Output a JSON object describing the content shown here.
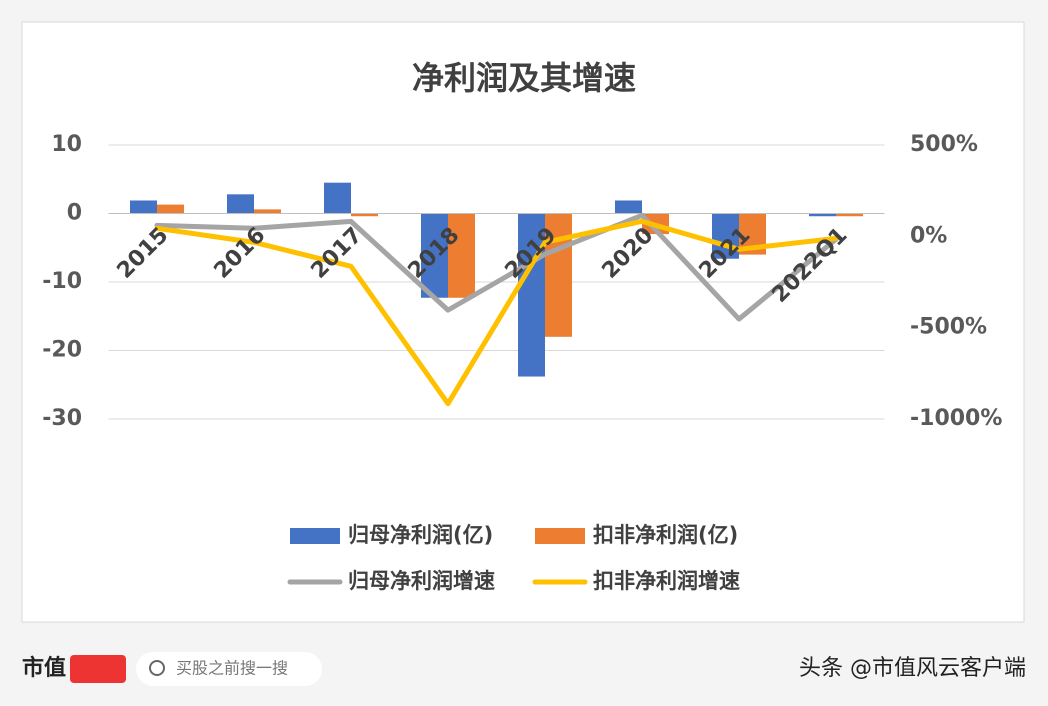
{
  "chart_data": {
    "type": "bar_line",
    "title": "净利润及其增速",
    "categories": [
      "2015",
      "2016",
      "2017",
      "2018",
      "2019",
      "2020",
      "2021",
      "2022Q1"
    ],
    "series": [
      {
        "name": "归母净利润(亿)",
        "type": "bar",
        "color": "#4472c4",
        "values": [
          1.9,
          2.8,
          4.5,
          -12.3,
          -23.8,
          1.9,
          -6.6,
          -0.4
        ]
      },
      {
        "name": "扣非净利润(亿)",
        "type": "bar",
        "color": "#ed7d31",
        "values": [
          1.3,
          0.6,
          -0.4,
          -12.3,
          -18,
          -3,
          -6,
          -0.4
        ]
      },
      {
        "name": "归母净利润增速",
        "type": "line",
        "axis": "y2",
        "color": "#a5a5a5",
        "values": [
          60,
          44,
          82,
          -404,
          -98,
          115,
          -453,
          -16
        ]
      },
      {
        "name": "扣非净利润增速",
        "type": "line",
        "axis": "y2",
        "color": "#ffc000",
        "values": [
          44,
          -33,
          -164,
          -916,
          -33,
          82,
          -71,
          -11
        ]
      }
    ],
    "ylim": [
      -30,
      10
    ],
    "yticks": [
      10,
      0,
      -10,
      -20,
      -30
    ],
    "y2lim": [
      -1000,
      500
    ],
    "y2ticks": [
      {
        "value": 500,
        "label": "500%"
      },
      {
        "value": 0,
        "label": "0%"
      },
      {
        "value": -500,
        "label": "-500%"
      },
      {
        "value": -1000,
        "label": "-1000%"
      }
    ],
    "grid": true
  },
  "footer": {
    "logo": "市值",
    "search": "买股之前搜一搜",
    "source": "头条 @市值风云客户端"
  }
}
